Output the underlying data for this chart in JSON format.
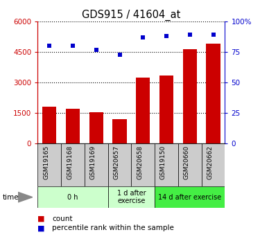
{
  "title": "GDS915 / 41604_at",
  "samples": [
    "GSM19165",
    "GSM19168",
    "GSM19169",
    "GSM20657",
    "GSM20658",
    "GSM19150",
    "GSM20660",
    "GSM20662"
  ],
  "counts": [
    1800,
    1700,
    1550,
    1200,
    3250,
    3350,
    4650,
    4900
  ],
  "percentiles": [
    80,
    80,
    77,
    73,
    87,
    88,
    89,
    89
  ],
  "bar_color": "#cc0000",
  "dot_color": "#0000cc",
  "groups": [
    {
      "label": "0 h",
      "span": [
        0,
        3
      ],
      "color": "#ccffcc"
    },
    {
      "label": "1 d after\nexercise",
      "span": [
        3,
        5
      ],
      "color": "#ccffcc"
    },
    {
      "label": "14 d after exercise",
      "span": [
        5,
        8
      ],
      "color": "#44ee44"
    }
  ],
  "ylim_left": [
    0,
    6000
  ],
  "ylim_right": [
    0,
    100
  ],
  "yticks_left": [
    0,
    1500,
    3000,
    4500,
    6000
  ],
  "yticks_right": [
    0,
    25,
    50,
    75,
    100
  ],
  "ytick_labels_left": [
    "0",
    "1500",
    "3000",
    "4500",
    "6000"
  ],
  "ytick_labels_right": [
    "0",
    "25",
    "50",
    "75",
    "100%"
  ],
  "left_axis_color": "#cc0000",
  "right_axis_color": "#0000cc",
  "legend_count_label": "count",
  "legend_pct_label": "percentile rank within the sample",
  "gray_cell_color": "#cccccc",
  "group1_color": "#ccffcc",
  "group2_color": "#33dd33"
}
